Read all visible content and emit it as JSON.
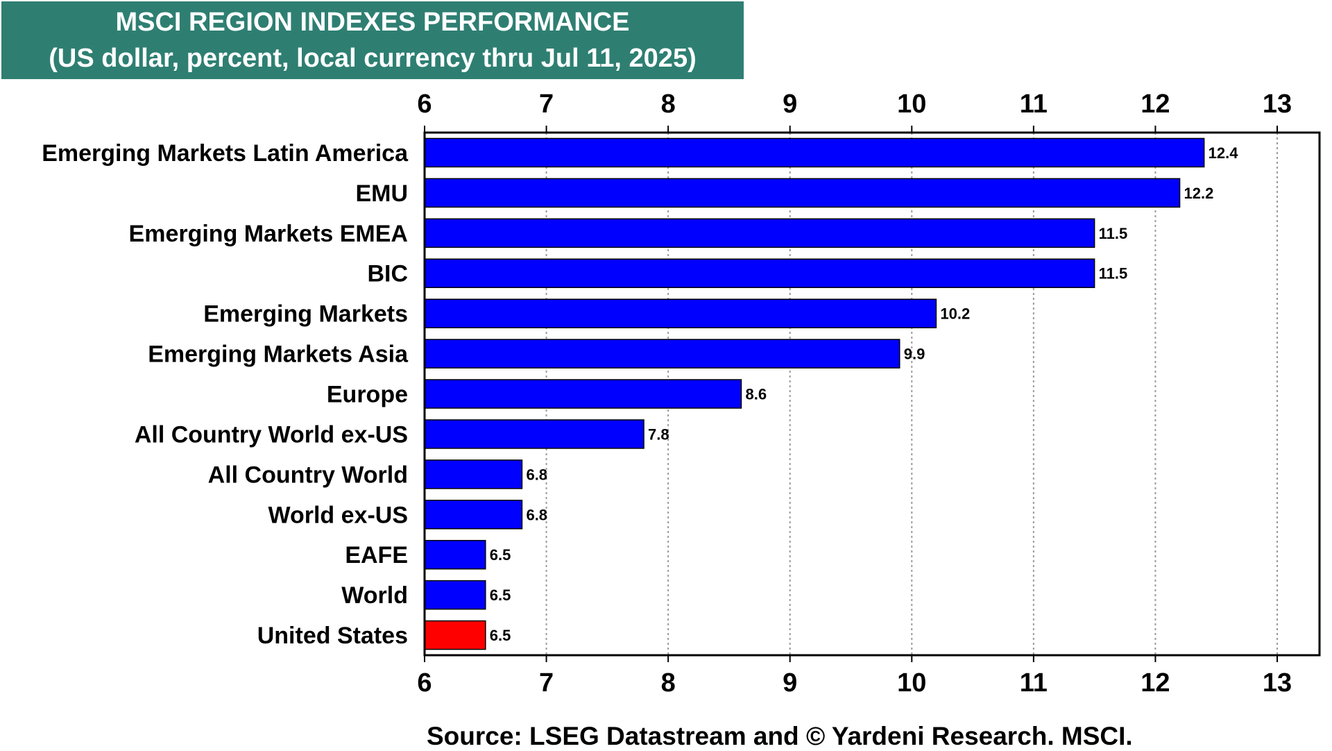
{
  "title": "MSCI REGION INDEXES PERFORMANCE",
  "subtitle": "(US dollar, percent, local currency thru Jul 11, 2025)",
  "source": "Source: LSEG Datastream and © Yardeni Research. MSCI.",
  "colors": {
    "title_bg": "#2e7f72",
    "bar": "#0000ff",
    "highlight_bar": "#ff0000"
  },
  "chart_data": {
    "type": "bar",
    "orientation": "horizontal",
    "xlim": [
      6,
      13
    ],
    "ticks": [
      6,
      7,
      8,
      9,
      10,
      11,
      12,
      13
    ],
    "grid": true,
    "categories": [
      "Emerging Markets Latin America",
      "EMU",
      "Emerging Markets EMEA",
      "BIC",
      "Emerging Markets",
      "Emerging Markets Asia",
      "Europe",
      "All Country World ex-US",
      "All Country World",
      "World ex-US",
      "EAFE",
      "World",
      "United States"
    ],
    "values": [
      12.4,
      12.2,
      11.5,
      11.5,
      10.2,
      9.9,
      8.6,
      7.8,
      6.8,
      6.8,
      6.5,
      6.5,
      6.5
    ],
    "highlight": "United States"
  }
}
